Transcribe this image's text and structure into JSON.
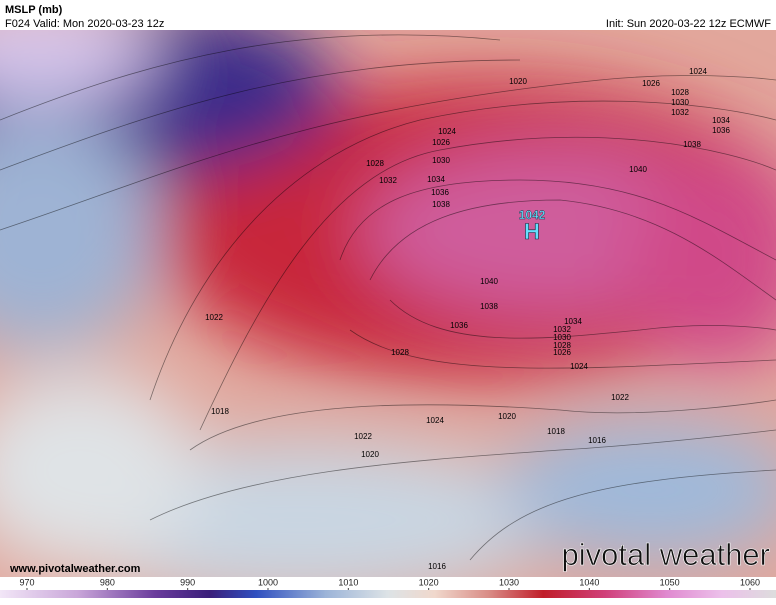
{
  "header": {
    "title": "MSLP (mb)",
    "valid": "F024 Valid: Mon 2020-03-23 12z",
    "init": "Init: Sun 2020-03-22 12z ECMWF"
  },
  "map": {
    "high_value": "1042",
    "high_symbol": "H",
    "contour_labels": [
      "1020",
      "1026",
      "1024",
      "1028",
      "1030",
      "1032",
      "1034",
      "1036",
      "1038",
      "1024",
      "1026",
      "1028",
      "1030",
      "1032",
      "1034",
      "1036",
      "1038",
      "1040",
      "1040",
      "1038",
      "1036",
      "1034",
      "1032",
      "1030",
      "1028",
      "1026",
      "1028",
      "1024",
      "1022",
      "1022",
      "1018",
      "1024",
      "1020",
      "1022",
      "1018",
      "1016",
      "1020",
      "1016"
    ],
    "website": "www.pivotalweather.com",
    "logo": "pivotal weather"
  },
  "colorbar": {
    "ticks": [
      970,
      980,
      990,
      1000,
      1010,
      1020,
      1030,
      1040,
      1050,
      1060
    ]
  }
}
